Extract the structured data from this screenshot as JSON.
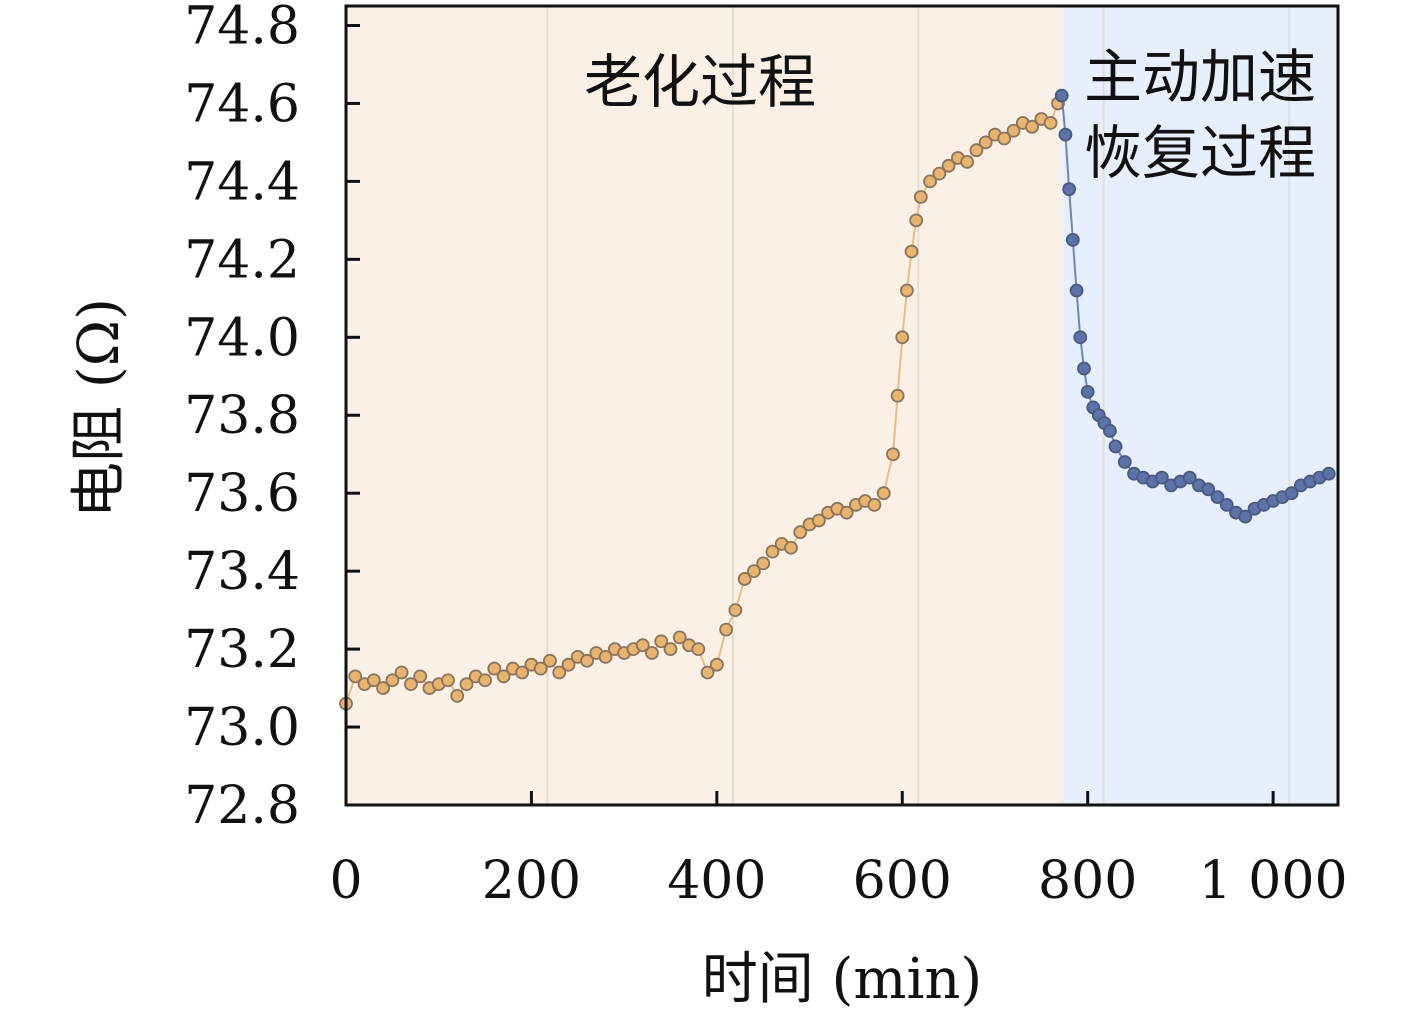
{
  "chart_data": {
    "type": "scatter",
    "xlabel": "时间 (min)",
    "ylabel": "电阻 (Ω)",
    "xlim": [
      0,
      1070
    ],
    "ylim": [
      72.8,
      74.85
    ],
    "x_ticks": [
      0,
      200,
      400,
      600,
      800,
      1000
    ],
    "x_tick_labels": [
      "0",
      "200",
      "400",
      "600",
      "800",
      "1 000"
    ],
    "y_ticks": [
      72.8,
      73.0,
      73.2,
      73.4,
      73.6,
      73.8,
      74.0,
      74.2,
      74.4,
      74.6,
      74.8
    ],
    "y_tick_labels": [
      "72.8",
      "73.0",
      "73.2",
      "73.4",
      "73.6",
      "73.8",
      "74.0",
      "74.2",
      "74.4",
      "74.6",
      "74.8"
    ],
    "grid": "x",
    "legend": "none",
    "regions": [
      {
        "label_lines": [
          "老化过程"
        ],
        "x_start": 0,
        "x_end": 772,
        "color": "#faf0e6"
      },
      {
        "label_lines": [
          "主动加速",
          "恢复过程"
        ],
        "x_start": 772,
        "x_end": 1070,
        "color": "#e8effc"
      }
    ],
    "series": [
      {
        "color": "#e8b46e",
        "edge_color": "#8a7560",
        "points": [
          [
            0,
            73.06
          ],
          [
            10,
            73.13
          ],
          [
            20,
            73.11
          ],
          [
            30,
            73.12
          ],
          [
            40,
            73.1
          ],
          [
            50,
            73.12
          ],
          [
            60,
            73.14
          ],
          [
            70,
            73.11
          ],
          [
            80,
            73.13
          ],
          [
            90,
            73.1
          ],
          [
            100,
            73.11
          ],
          [
            110,
            73.12
          ],
          [
            120,
            73.08
          ],
          [
            130,
            73.11
          ],
          [
            140,
            73.13
          ],
          [
            150,
            73.12
          ],
          [
            160,
            73.15
          ],
          [
            170,
            73.13
          ],
          [
            180,
            73.15
          ],
          [
            190,
            73.14
          ],
          [
            200,
            73.16
          ],
          [
            210,
            73.15
          ],
          [
            220,
            73.17
          ],
          [
            230,
            73.14
          ],
          [
            240,
            73.16
          ],
          [
            250,
            73.18
          ],
          [
            260,
            73.17
          ],
          [
            270,
            73.19
          ],
          [
            280,
            73.18
          ],
          [
            290,
            73.2
          ],
          [
            300,
            73.19
          ],
          [
            310,
            73.2
          ],
          [
            320,
            73.21
          ],
          [
            330,
            73.19
          ],
          [
            340,
            73.22
          ],
          [
            350,
            73.2
          ],
          [
            360,
            73.23
          ],
          [
            370,
            73.21
          ],
          [
            380,
            73.2
          ],
          [
            390,
            73.14
          ],
          [
            400,
            73.16
          ],
          [
            410,
            73.25
          ],
          [
            420,
            73.3
          ],
          [
            430,
            73.38
          ],
          [
            440,
            73.4
          ],
          [
            450,
            73.42
          ],
          [
            460,
            73.45
          ],
          [
            470,
            73.47
          ],
          [
            480,
            73.46
          ],
          [
            490,
            73.5
          ],
          [
            500,
            73.52
          ],
          [
            510,
            73.53
          ],
          [
            520,
            73.55
          ],
          [
            530,
            73.56
          ],
          [
            540,
            73.55
          ],
          [
            550,
            73.57
          ],
          [
            560,
            73.58
          ],
          [
            570,
            73.57
          ],
          [
            580,
            73.6
          ],
          [
            590,
            73.7
          ],
          [
            595,
            73.85
          ],
          [
            600,
            74.0
          ],
          [
            605,
            74.12
          ],
          [
            610,
            74.22
          ],
          [
            615,
            74.3
          ],
          [
            620,
            74.36
          ],
          [
            630,
            74.4
          ],
          [
            640,
            74.42
          ],
          [
            650,
            74.44
          ],
          [
            660,
            74.46
          ],
          [
            670,
            74.45
          ],
          [
            680,
            74.48
          ],
          [
            690,
            74.5
          ],
          [
            700,
            74.52
          ],
          [
            710,
            74.51
          ],
          [
            720,
            74.53
          ],
          [
            730,
            74.55
          ],
          [
            740,
            74.54
          ],
          [
            750,
            74.56
          ],
          [
            760,
            74.55
          ],
          [
            768,
            74.6
          ]
        ]
      },
      {
        "color": "#5b73a8",
        "edge_color": "#4a5a80",
        "points": [
          [
            772,
            74.62
          ],
          [
            776,
            74.52
          ],
          [
            780,
            74.38
          ],
          [
            784,
            74.25
          ],
          [
            788,
            74.12
          ],
          [
            792,
            74.0
          ],
          [
            796,
            73.92
          ],
          [
            800,
            73.86
          ],
          [
            806,
            73.82
          ],
          [
            812,
            73.8
          ],
          [
            818,
            73.78
          ],
          [
            824,
            73.76
          ],
          [
            830,
            73.72
          ],
          [
            840,
            73.68
          ],
          [
            850,
            73.65
          ],
          [
            860,
            73.64
          ],
          [
            870,
            73.63
          ],
          [
            880,
            73.64
          ],
          [
            890,
            73.62
          ],
          [
            900,
            73.63
          ],
          [
            910,
            73.64
          ],
          [
            920,
            73.62
          ],
          [
            930,
            73.61
          ],
          [
            940,
            73.59
          ],
          [
            950,
            73.57
          ],
          [
            960,
            73.55
          ],
          [
            970,
            73.54
          ],
          [
            980,
            73.56
          ],
          [
            990,
            73.57
          ],
          [
            1000,
            73.58
          ],
          [
            1010,
            73.59
          ],
          [
            1020,
            73.6
          ],
          [
            1030,
            73.62
          ],
          [
            1040,
            73.63
          ],
          [
            1050,
            73.64
          ],
          [
            1060,
            73.65
          ]
        ]
      }
    ]
  }
}
